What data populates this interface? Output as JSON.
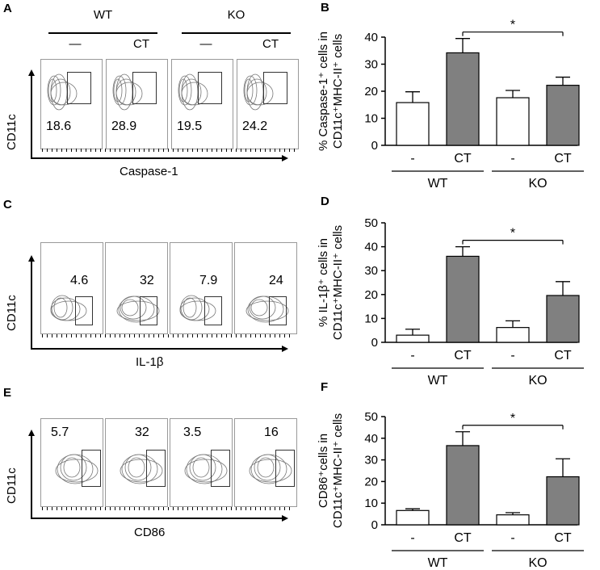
{
  "flow_panels": [
    {
      "letter": "A",
      "ylabel": "CD11c",
      "xlabel": "Caspase-1",
      "values": [
        "18.6",
        "28.9",
        "19.5",
        "24.2"
      ],
      "header": {
        "groups": [
          "WT",
          "KO"
        ],
        "conditions": [
          "—",
          "CT",
          "—",
          "CT"
        ]
      }
    },
    {
      "letter": "C",
      "ylabel": "CD11c",
      "xlabel": "IL-1β",
      "values": [
        "4.6",
        "32",
        "7.9",
        "24"
      ]
    },
    {
      "letter": "E",
      "ylabel": "CD11c",
      "xlabel": "CD86",
      "values": [
        "5.7",
        "32",
        "3.5",
        "16"
      ]
    }
  ],
  "chart_data": [
    {
      "letter": "B",
      "type": "bar",
      "categories": [
        "-",
        "CT",
        "-",
        "CT"
      ],
      "groups": [
        "WT",
        "KO"
      ],
      "values": [
        15.8,
        34.2,
        17.6,
        22.2
      ],
      "errors": [
        4.0,
        5.3,
        2.7,
        3.0
      ],
      "fills": [
        "#ffffff",
        "#808080",
        "#ffffff",
        "#808080"
      ],
      "ylim": [
        0,
        40
      ],
      "yticks": [
        0,
        10,
        20,
        30,
        40
      ],
      "ylabel_line1": "% Caspase-1⁺ cells in",
      "ylabel_line2": "CD11c⁺MHC-II⁺ cells",
      "significance": "*"
    },
    {
      "letter": "D",
      "type": "bar",
      "categories": [
        "-",
        "CT",
        "-",
        "CT"
      ],
      "groups": [
        "WT",
        "KO"
      ],
      "values": [
        3.0,
        36.0,
        6.2,
        19.6
      ],
      "errors": [
        2.5,
        4.0,
        2.8,
        5.8
      ],
      "fills": [
        "#ffffff",
        "#808080",
        "#ffffff",
        "#808080"
      ],
      "ylim": [
        0,
        50
      ],
      "yticks": [
        0,
        10,
        20,
        30,
        40,
        50
      ],
      "ylabel_line1": "% IL-1β⁺ cells in",
      "ylabel_line2": "CD11c⁺MHC-II⁺ cells",
      "significance": "*"
    },
    {
      "letter": "F",
      "type": "bar",
      "categories": [
        "-",
        "CT",
        "-",
        "CT"
      ],
      "groups": [
        "WT",
        "KO"
      ],
      "values": [
        6.6,
        36.6,
        4.6,
        22.2
      ],
      "errors": [
        0.8,
        6.4,
        1.0,
        8.3
      ],
      "fills": [
        "#ffffff",
        "#808080",
        "#ffffff",
        "#808080"
      ],
      "ylim": [
        0,
        50
      ],
      "yticks": [
        0,
        10,
        20,
        30,
        40,
        50
      ],
      "ylabel_line1": "CD86⁺cells in",
      "ylabel_line2": "CD11c⁺MHC-II⁺ cells",
      "significance": "*"
    }
  ],
  "colors": {
    "bar_dark": "#808080",
    "bar_light": "#ffffff",
    "contour": "#777777"
  }
}
